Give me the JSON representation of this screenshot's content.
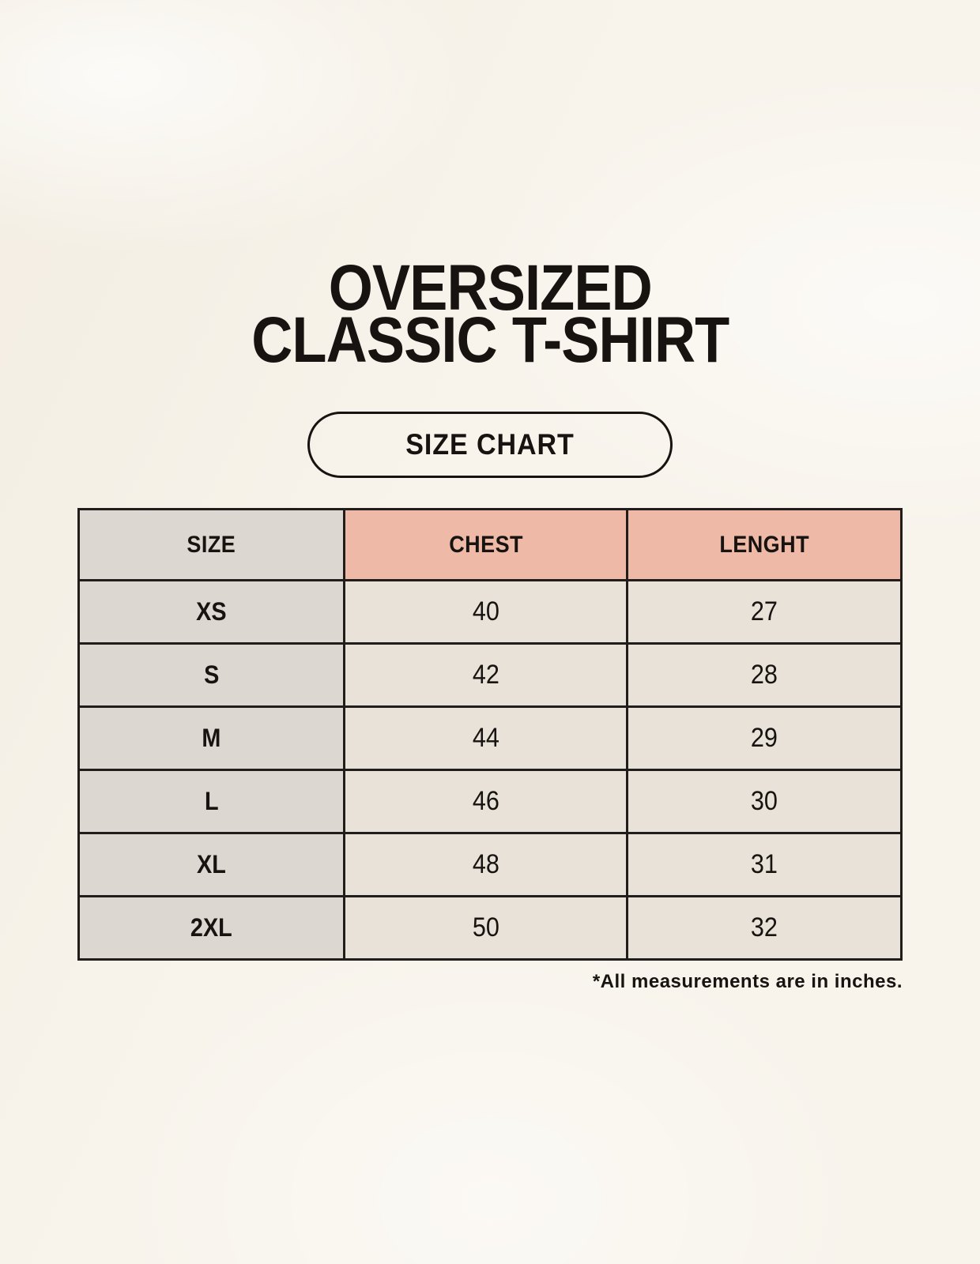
{
  "header": {
    "title_line1": "OVERSIZED",
    "title_line2": "CLASSIC T-SHIRT",
    "badge_label": "SIZE CHART"
  },
  "size_table": {
    "columns": [
      "SIZE",
      "CHEST",
      "LENGHT"
    ],
    "rows": [
      {
        "size": "XS",
        "chest": "40",
        "length": "27"
      },
      {
        "size": "S",
        "chest": "42",
        "length": "28"
      },
      {
        "size": "M",
        "chest": "44",
        "length": "29"
      },
      {
        "size": "L",
        "chest": "46",
        "length": "30"
      },
      {
        "size": "XL",
        "chest": "48",
        "length": "31"
      },
      {
        "size": "2XL",
        "chest": "50",
        "length": "32"
      }
    ],
    "footnote": "*All measurements are in inches."
  },
  "chart_data": {
    "type": "table",
    "title": "OVERSIZED CLASSIC T-SHIRT SIZE CHART",
    "columns": [
      "SIZE",
      "CHEST",
      "LENGHT"
    ],
    "rows": [
      [
        "XS",
        "40",
        "27"
      ],
      [
        "S",
        "42",
        "28"
      ],
      [
        "M",
        "44",
        "29"
      ],
      [
        "L",
        "46",
        "30"
      ],
      [
        "XL",
        "48",
        "31"
      ],
      [
        "2XL",
        "50",
        "32"
      ]
    ],
    "units_note": "*All measurements are in inches."
  },
  "colors": {
    "bg": "#f8f4ec",
    "cell_gray": "#ddd7d1",
    "cell_pink": "#eeb9a6",
    "cell_cream": "#e9e2d8",
    "line": "#211d1a",
    "ink": "#161310"
  }
}
